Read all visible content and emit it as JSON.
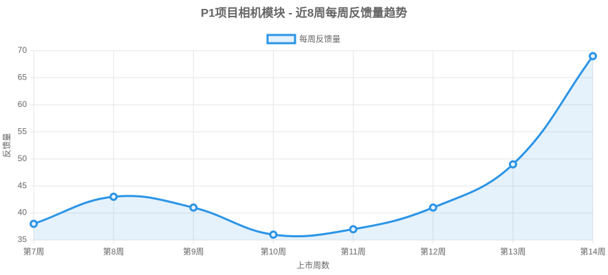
{
  "chart_data": {
    "type": "line",
    "title": "P1项目相机模块 - 近8周每周反馈量趋势",
    "x_label": "上市周数",
    "y_label": "反馈量",
    "categories": [
      "第7周",
      "第8周",
      "第9周",
      "第10周",
      "第11周",
      "第12周",
      "第13周",
      "第14周"
    ],
    "series": [
      {
        "name": "每周反馈量",
        "color": "#2b94e6",
        "values": [
          38,
          43,
          41,
          36,
          37,
          41,
          49,
          69
        ]
      }
    ],
    "ylim": [
      35,
      70
    ],
    "yticks": [
      35,
      40,
      45,
      50,
      55,
      60,
      65,
      70
    ],
    "grid": true,
    "fill": true,
    "legend": "top"
  }
}
